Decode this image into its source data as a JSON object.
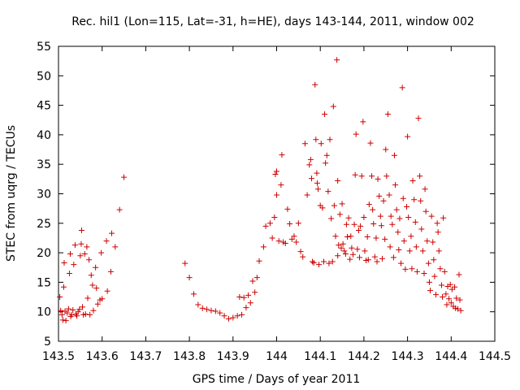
{
  "chart_data": {
    "type": "scatter",
    "title": "Rec. hil1 (Lon=115, Lat=-31, h=HE), days 143-144, 2011, window 002",
    "xlabel": "GPS time / Days of year 2011",
    "ylabel": "STEC from uqrg / TECUs",
    "xlim": [
      143.5,
      144.5
    ],
    "ylim": [
      5,
      55
    ],
    "x_ticks": [
      "143.5",
      "143.6",
      "143.7",
      "143.8",
      "143.9",
      "144",
      "144.1",
      "144.2",
      "144.3",
      "144.4",
      "144.5"
    ],
    "y_ticks": [
      "5",
      "10",
      "15",
      "20",
      "25",
      "30",
      "35",
      "40",
      "45",
      "50",
      "55"
    ],
    "grid": false,
    "marker": "+",
    "color": "#cc0000",
    "points": [
      [
        143.503,
        12.5
      ],
      [
        143.505,
        10.2
      ],
      [
        143.508,
        9.5
      ],
      [
        143.51,
        8.6
      ],
      [
        143.512,
        14.2
      ],
      [
        143.513,
        18.3
      ],
      [
        143.515,
        10.1
      ],
      [
        143.517,
        8.5
      ],
      [
        143.52,
        9.8
      ],
      [
        143.523,
        10.5
      ],
      [
        143.525,
        16.5
      ],
      [
        143.527,
        19.8
      ],
      [
        143.528,
        9.2
      ],
      [
        143.53,
        9.5
      ],
      [
        143.533,
        10.3
      ],
      [
        143.535,
        18.0
      ],
      [
        143.538,
        21.3
      ],
      [
        143.54,
        9.6
      ],
      [
        143.542,
        9.3
      ],
      [
        143.545,
        10.0
      ],
      [
        143.548,
        10.4
      ],
      [
        143.55,
        19.5
      ],
      [
        143.552,
        21.5
      ],
      [
        143.553,
        23.8
      ],
      [
        143.555,
        10.8
      ],
      [
        143.557,
        9.5
      ],
      [
        143.56,
        19.8
      ],
      [
        143.562,
        9.6
      ],
      [
        143.565,
        21.0
      ],
      [
        143.567,
        12.3
      ],
      [
        143.57,
        18.8
      ],
      [
        143.572,
        9.5
      ],
      [
        143.575,
        16.2
      ],
      [
        143.578,
        14.5
      ],
      [
        143.58,
        10.2
      ],
      [
        143.585,
        17.5
      ],
      [
        143.587,
        14.0
      ],
      [
        143.59,
        11.3
      ],
      [
        143.595,
        12.0
      ],
      [
        143.598,
        20.0
      ],
      [
        143.6,
        12.2
      ],
      [
        143.61,
        22.0
      ],
      [
        143.612,
        13.5
      ],
      [
        143.62,
        16.8
      ],
      [
        143.622,
        23.3
      ],
      [
        143.63,
        21.0
      ],
      [
        143.64,
        27.3
      ],
      [
        143.65,
        32.8
      ],
      [
        143.79,
        18.2
      ],
      [
        143.8,
        15.8
      ],
      [
        143.81,
        13.0
      ],
      [
        143.82,
        11.2
      ],
      [
        143.83,
        10.6
      ],
      [
        143.84,
        10.4
      ],
      [
        143.85,
        10.2
      ],
      [
        143.86,
        10.1
      ],
      [
        143.87,
        9.8
      ],
      [
        143.88,
        9.3
      ],
      [
        143.89,
        8.8
      ],
      [
        143.9,
        9.0
      ],
      [
        143.91,
        9.3
      ],
      [
        143.915,
        12.5
      ],
      [
        143.92,
        9.5
      ],
      [
        143.925,
        12.4
      ],
      [
        143.93,
        10.7
      ],
      [
        143.935,
        12.8
      ],
      [
        143.94,
        11.5
      ],
      [
        143.945,
        15.2
      ],
      [
        143.95,
        13.3
      ],
      [
        143.955,
        15.8
      ],
      [
        143.96,
        18.6
      ],
      [
        143.97,
        21.0
      ],
      [
        143.975,
        24.5
      ],
      [
        143.985,
        25.0
      ],
      [
        143.99,
        22.5
      ],
      [
        143.995,
        26.0
      ],
      [
        143.997,
        33.3
      ],
      [
        144.0,
        29.8
      ],
      [
        144.0,
        33.8
      ],
      [
        144.005,
        22.0
      ],
      [
        144.01,
        31.5
      ],
      [
        144.012,
        36.6
      ],
      [
        144.015,
        21.8
      ],
      [
        144.02,
        21.6
      ],
      [
        144.025,
        27.4
      ],
      [
        144.03,
        24.9
      ],
      [
        144.035,
        22.3
      ],
      [
        144.04,
        22.8
      ],
      [
        144.045,
        21.8
      ],
      [
        144.05,
        25.0
      ],
      [
        144.055,
        20.2
      ],
      [
        144.06,
        19.3
      ],
      [
        144.065,
        38.5
      ],
      [
        144.07,
        29.8
      ],
      [
        144.075,
        34.9
      ],
      [
        144.078,
        35.8
      ],
      [
        144.08,
        32.6
      ],
      [
        144.082,
        18.5
      ],
      [
        144.085,
        18.3
      ],
      [
        144.088,
        48.5
      ],
      [
        144.09,
        39.2
      ],
      [
        144.092,
        33.5
      ],
      [
        144.093,
        31.8
      ],
      [
        144.095,
        30.8
      ],
      [
        144.097,
        18.0
      ],
      [
        144.1,
        28.0
      ],
      [
        144.102,
        38.5
      ],
      [
        144.105,
        27.6
      ],
      [
        144.108,
        18.5
      ],
      [
        144.11,
        43.5
      ],
      [
        144.112,
        35.2
      ],
      [
        144.115,
        36.5
      ],
      [
        144.118,
        30.4
      ],
      [
        144.12,
        18.2
      ],
      [
        144.122,
        39.2
      ],
      [
        144.125,
        25.8
      ],
      [
        144.128,
        18.5
      ],
      [
        144.13,
        44.8
      ],
      [
        144.132,
        28.0
      ],
      [
        144.135,
        22.8
      ],
      [
        144.138,
        52.7
      ],
      [
        144.14,
        19.5
      ],
      [
        144.14,
        32.2
      ],
      [
        144.142,
        21.3
      ],
      [
        144.145,
        26.5
      ],
      [
        144.148,
        20.8
      ],
      [
        144.15,
        28.3
      ],
      [
        144.152,
        21.5
      ],
      [
        144.155,
        20.3
      ],
      [
        144.158,
        19.8
      ],
      [
        144.16,
        24.8
      ],
      [
        144.162,
        22.7
      ],
      [
        144.165,
        25.9
      ],
      [
        144.168,
        18.9
      ],
      [
        144.17,
        22.8
      ],
      [
        144.172,
        20.8
      ],
      [
        144.175,
        19.7
      ],
      [
        144.178,
        24.8
      ],
      [
        144.18,
        33.2
      ],
      [
        144.182,
        40.1
      ],
      [
        144.185,
        20.6
      ],
      [
        144.188,
        23.8
      ],
      [
        144.19,
        19.2
      ],
      [
        144.192,
        24.5
      ],
      [
        144.195,
        33.0
      ],
      [
        144.198,
        42.2
      ],
      [
        144.2,
        26.0
      ],
      [
        144.202,
        20.3
      ],
      [
        144.205,
        18.7
      ],
      [
        144.208,
        22.7
      ],
      [
        144.21,
        18.8
      ],
      [
        144.212,
        28.2
      ],
      [
        144.215,
        38.6
      ],
      [
        144.218,
        33.0
      ],
      [
        144.22,
        27.3
      ],
      [
        144.222,
        24.9
      ],
      [
        144.225,
        19.3
      ],
      [
        144.228,
        22.5
      ],
      [
        144.23,
        18.5
      ],
      [
        144.232,
        32.5
      ],
      [
        144.235,
        29.6
      ],
      [
        144.238,
        26.2
      ],
      [
        144.24,
        24.6
      ],
      [
        144.242,
        19.0
      ],
      [
        144.245,
        28.8
      ],
      [
        144.248,
        22.3
      ],
      [
        144.25,
        37.5
      ],
      [
        144.252,
        33.0
      ],
      [
        144.255,
        43.5
      ],
      [
        144.258,
        29.8
      ],
      [
        144.26,
        21.0
      ],
      [
        144.262,
        26.2
      ],
      [
        144.265,
        24.8
      ],
      [
        144.268,
        19.2
      ],
      [
        144.27,
        36.5
      ],
      [
        144.272,
        31.5
      ],
      [
        144.275,
        27.3
      ],
      [
        144.278,
        23.5
      ],
      [
        144.28,
        20.5
      ],
      [
        144.282,
        25.8
      ],
      [
        144.285,
        18.2
      ],
      [
        144.288,
        48.0
      ],
      [
        144.29,
        29.2
      ],
      [
        144.292,
        22.0
      ],
      [
        144.295,
        17.2
      ],
      [
        144.298,
        27.8
      ],
      [
        144.3,
        39.7
      ],
      [
        144.302,
        26.0
      ],
      [
        144.305,
        20.3
      ],
      [
        144.308,
        22.8
      ],
      [
        144.31,
        17.3
      ],
      [
        144.312,
        32.2
      ],
      [
        144.315,
        29.0
      ],
      [
        144.318,
        25.2
      ],
      [
        144.32,
        21.0
      ],
      [
        144.322,
        16.8
      ],
      [
        144.325,
        42.8
      ],
      [
        144.328,
        33.0
      ],
      [
        144.33,
        28.8
      ],
      [
        144.332,
        24.0
      ],
      [
        144.335,
        20.3
      ],
      [
        144.338,
        16.5
      ],
      [
        144.34,
        30.8
      ],
      [
        144.342,
        27.0
      ],
      [
        144.345,
        22.0
      ],
      [
        144.348,
        18.2
      ],
      [
        144.35,
        15.0
      ],
      [
        144.352,
        13.6
      ],
      [
        144.355,
        26.2
      ],
      [
        144.358,
        21.8
      ],
      [
        144.36,
        18.8
      ],
      [
        144.362,
        16.0
      ],
      [
        144.365,
        12.9
      ],
      [
        144.368,
        25.0
      ],
      [
        144.37,
        23.5
      ],
      [
        144.372,
        20.3
      ],
      [
        144.375,
        17.3
      ],
      [
        144.378,
        14.5
      ],
      [
        144.38,
        12.5
      ],
      [
        144.382,
        25.9
      ],
      [
        144.385,
        16.8
      ],
      [
        144.388,
        13.0
      ],
      [
        144.39,
        11.2
      ],
      [
        144.392,
        14.3
      ],
      [
        144.395,
        12.2
      ],
      [
        144.398,
        14.6
      ],
      [
        144.4,
        11.5
      ],
      [
        144.402,
        13.8
      ],
      [
        144.405,
        10.9
      ],
      [
        144.408,
        14.2
      ],
      [
        144.41,
        10.6
      ],
      [
        144.412,
        12.3
      ],
      [
        144.415,
        10.5
      ],
      [
        144.418,
        16.3
      ],
      [
        144.42,
        12.0
      ],
      [
        144.422,
        10.2
      ]
    ]
  }
}
